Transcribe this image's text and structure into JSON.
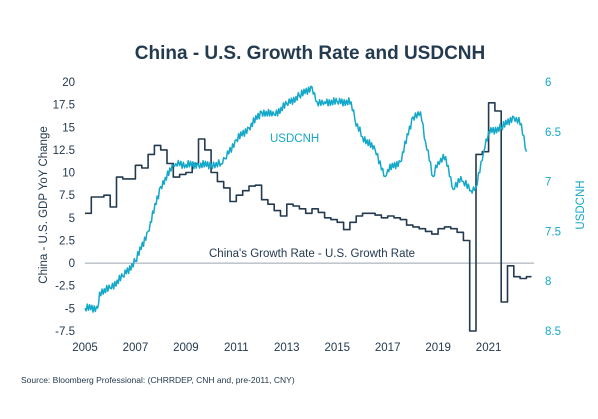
{
  "chart_data": {
    "type": "line",
    "title": "China - U.S. Growth Rate and USDCNH",
    "source": "Source: Bloomberg Professional: (CHRRDEP, CNH and, pre-2011, CNY)",
    "ylabel_left": "China - U.S. GDP YoY Change",
    "ylabel_right": "USDCNH",
    "x_range": [
      2005,
      2022.8
    ],
    "x_ticks": [
      "2005",
      "2007",
      "2009",
      "2011",
      "2013",
      "2015",
      "2017",
      "2019",
      "2021"
    ],
    "y_left_range": [
      -7.5,
      20
    ],
    "y_left_ticks": [
      "20",
      "17.5",
      "15",
      "12.5",
      "10",
      "7.5",
      "5",
      "2.5",
      "0",
      "-2.5",
      "-5",
      "-7.5"
    ],
    "y_right_range": [
      6,
      8.5
    ],
    "y_right_inverted": true,
    "y_right_ticks": [
      "6",
      "6.5",
      "7",
      "7.5",
      "8",
      "8.5"
    ],
    "grid": false,
    "zero_line": true,
    "colors": {
      "growth": "#243a4f",
      "usdcnh": "#14a8c9",
      "zero_line": "#9aa5ae"
    },
    "series": [
      {
        "name": "China's Growth Rate - U.S. Growth Rate",
        "axis": "left",
        "step": true,
        "color": "#243a4f",
        "x": [
          2005,
          2005.25,
          2005.75,
          2006,
          2006.25,
          2006.5,
          2007,
          2007.25,
          2007.5,
          2007.75,
          2008,
          2008.25,
          2008.5,
          2008.75,
          2009,
          2009.25,
          2009.5,
          2009.75,
          2010,
          2010.25,
          2010.5,
          2010.75,
          2011,
          2011.25,
          2011.5,
          2011.75,
          2012,
          2012.25,
          2012.5,
          2012.75,
          2013,
          2013.25,
          2013.5,
          2013.75,
          2014,
          2014.25,
          2014.5,
          2014.75,
          2015,
          2015.25,
          2015.5,
          2015.75,
          2016,
          2016.25,
          2016.5,
          2016.75,
          2017,
          2017.25,
          2017.5,
          2017.75,
          2018,
          2018.25,
          2018.5,
          2018.75,
          2019,
          2019.25,
          2019.5,
          2019.75,
          2020,
          2020.25,
          2020.5,
          2020.75,
          2021,
          2021.25,
          2021.5,
          2021.75,
          2022,
          2022.25,
          2022.5
        ],
        "values": [
          5.5,
          7.3,
          7.5,
          6.2,
          9.5,
          9.3,
          10.8,
          10.5,
          12,
          13,
          12.5,
          11,
          9.5,
          9.8,
          10,
          11,
          13.7,
          12.5,
          10,
          9,
          8.3,
          6.8,
          7.5,
          8,
          8.5,
          8.6,
          7,
          6.5,
          5.8,
          5.2,
          6.5,
          6.3,
          6,
          5.5,
          6,
          5.6,
          5,
          4.8,
          4.5,
          3.7,
          4.5,
          5.2,
          5.5,
          5.5,
          5.3,
          5,
          5.2,
          5,
          4.8,
          4.2,
          4,
          3.8,
          3.5,
          3.2,
          3.8,
          4,
          3.8,
          3.4,
          2.5,
          -7.5,
          12,
          12.3,
          17.7,
          16.8,
          -4.3,
          -0.3,
          -1.5,
          -1.7,
          -1.5
        ]
      },
      {
        "name": "USDCNH",
        "axis": "right",
        "step": false,
        "color": "#14a8c9",
        "x": [
          2005,
          2005.5,
          2005.58,
          2006,
          2006.5,
          2007,
          2007.5,
          2008,
          2008.5,
          2008.6,
          2009,
          2009.5,
          2010,
          2010.4,
          2010.55,
          2011,
          2011.5,
          2012,
          2012.5,
          2013,
          2013.5,
          2014,
          2014.2,
          2014.5,
          2015,
          2015.55,
          2015.7,
          2016,
          2016.5,
          2016.9,
          2017,
          2017.5,
          2018,
          2018.3,
          2018.5,
          2018.8,
          2019,
          2019.3,
          2019.6,
          2019.9,
          2020,
          2020.3,
          2020.5,
          2020.8,
          2021,
          2021.5,
          2022,
          2022.3,
          2022.5
        ],
        "values": [
          8.27,
          8.27,
          8.11,
          8.07,
          7.95,
          7.8,
          7.5,
          7.05,
          6.84,
          6.82,
          6.83,
          6.83,
          6.83,
          6.82,
          6.77,
          6.58,
          6.46,
          6.3,
          6.33,
          6.22,
          6.14,
          6.05,
          6.2,
          6.2,
          6.2,
          6.2,
          6.38,
          6.55,
          6.68,
          6.95,
          6.88,
          6.8,
          6.35,
          6.3,
          6.6,
          6.95,
          6.8,
          6.75,
          7.08,
          6.95,
          7.0,
          7.09,
          7.05,
          6.7,
          6.5,
          6.46,
          6.35,
          6.42,
          6.7
        ]
      }
    ],
    "annotations": [
      {
        "text": "USDCNH",
        "series": "USDCNH"
      },
      {
        "text": "China's Growth Rate - U.S. Growth Rate",
        "series": "China's Growth Rate - U.S. Growth Rate"
      }
    ]
  }
}
